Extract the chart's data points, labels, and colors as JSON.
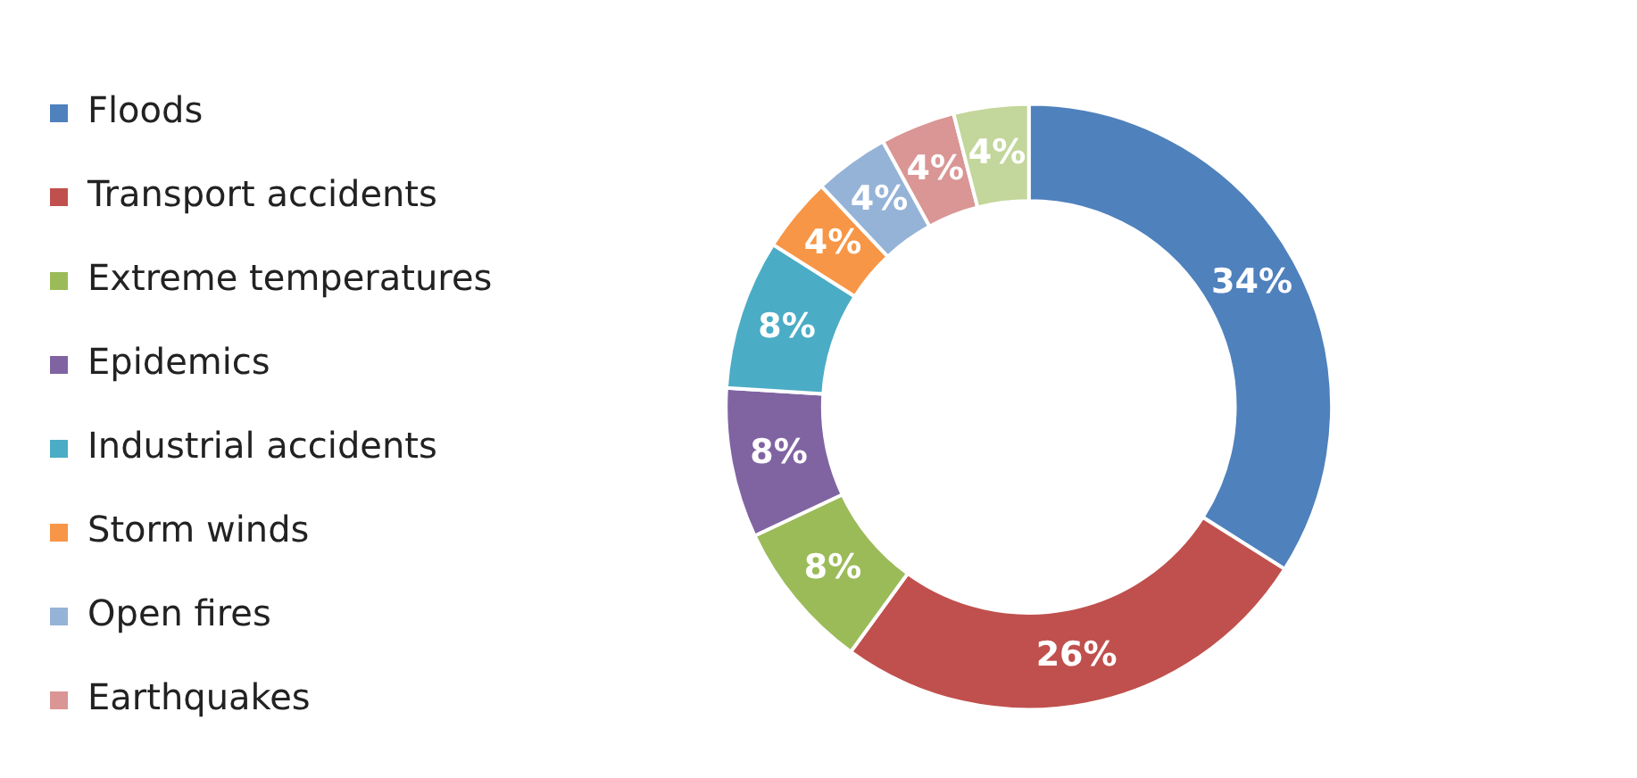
{
  "chart_data": {
    "type": "donut",
    "categories": [
      "Floods",
      "Transport accidents",
      "Extreme temperatures",
      "Epidemics",
      "Industrial accidents",
      "Storm winds",
      "Open fires",
      "Earthquakes",
      null
    ],
    "values": [
      34,
      26,
      8,
      8,
      8,
      4,
      4,
      4,
      4
    ],
    "colors": [
      "#4f81bd",
      "#c0504d",
      "#9bbb59",
      "#8064a2",
      "#4bacc6",
      "#f79646",
      "#95b3d7",
      "#d99694",
      "#c3d69b"
    ],
    "value_labels": [
      "34%",
      "26%",
      "8%",
      "8%",
      "8%",
      "4%",
      "4%",
      "4%",
      "4%"
    ],
    "legend": "left"
  }
}
